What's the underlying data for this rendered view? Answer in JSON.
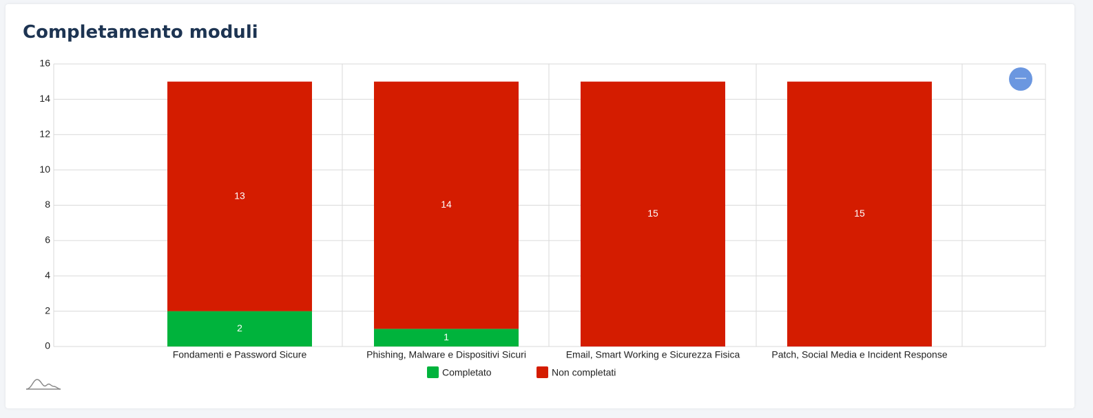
{
  "chart_data": {
    "type": "stacked_bar",
    "title": "Completamento moduli",
    "categories": [
      "Fondamenti e Password Sicure",
      "Phishing, Malware e Dispositivi Sicuri",
      "Email, Smart Working e Sicurezza Fisica",
      "Patch, Social Media e Incident Response"
    ],
    "series": [
      {
        "name": "Completato",
        "color": "#00b33c",
        "values": [
          2,
          1,
          0,
          0
        ]
      },
      {
        "name": "Non completati",
        "color": "#d41c00",
        "values": [
          13,
          14,
          15,
          15
        ]
      }
    ],
    "ylim": [
      0,
      16
    ],
    "yticks": [
      0,
      2,
      4,
      6,
      8,
      10,
      12,
      14,
      16
    ],
    "grid": true,
    "legend": "bottom"
  }
}
